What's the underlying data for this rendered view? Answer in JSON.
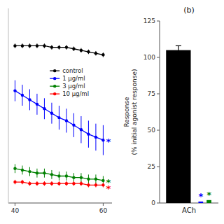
{
  "chart_data": [
    {
      "type": "line",
      "x": [
        40,
        41.666666666666664,
        43.333333333333336,
        45,
        46.666666666666664,
        48.333333333333336,
        50,
        51.66666666666667,
        53.333333333333336,
        55,
        56.66666666666667,
        58.333333333333336,
        60
      ],
      "xlim": [
        38.5,
        62
      ],
      "xticks": [
        40,
        60
      ],
      "ylim": [
        -5,
        125
      ],
      "yticks": [],
      "tick_labels": "x",
      "legend": "center",
      "marker": "circle",
      "series": [
        {
          "name": "control",
          "color": "black",
          "values": [
            100,
            100,
            100,
            100,
            100,
            99,
            99,
            99,
            98,
            97,
            96,
            95,
            94
          ],
          "errors": [
            1.5,
            1.5,
            1.5,
            1.5,
            1.5,
            1.5,
            1.5,
            1.5,
            1.5,
            1.5,
            1.5,
            1.5,
            1.5
          ]
        },
        {
          "name": "1 μg/ml",
          "color": "blue",
          "values": [
            70,
            67,
            64,
            61,
            58,
            55,
            52,
            50,
            47,
            44,
            41,
            39,
            37
          ],
          "errors": [
            7,
            7,
            7,
            7,
            7,
            7,
            8,
            8,
            8,
            9,
            9,
            9,
            10
          ]
        },
        {
          "name": "3 μg/ml",
          "color": "green",
          "values": [
            18,
            17,
            16,
            15,
            15,
            14,
            13,
            13,
            12,
            12,
            11,
            11,
            10
          ],
          "errors": [
            3,
            3,
            3,
            3,
            3,
            3,
            3,
            3,
            3,
            3,
            3,
            3,
            3
          ]
        },
        {
          "name": "10 μg/ml",
          "color": "red",
          "values": [
            9,
            9,
            8,
            8,
            8,
            8,
            8,
            8,
            8,
            8,
            7,
            7,
            7
          ],
          "errors": [
            1.5,
            1.5,
            1.5,
            1.5,
            1.5,
            1.5,
            1.5,
            1.5,
            1.5,
            1.5,
            1.5,
            1.5,
            1.5
          ]
        }
      ],
      "annotations": [
        {
          "text": "*",
          "color": "blue",
          "x": 60,
          "y": 37
        },
        {
          "text": "*",
          "color": "green",
          "x": 60,
          "y": 10
        },
        {
          "text": "*",
          "color": "red",
          "x": 60,
          "y": 7
        }
      ]
    },
    {
      "type": "bar",
      "title": "(b)",
      "ylabel": "Response\n(% initial agonist response)",
      "categories": [
        "ACh"
      ],
      "series": [
        {
          "color": "black",
          "values": [
            105
          ],
          "errors": [
            3
          ]
        },
        {
          "color": "blue",
          "values": [
            1.0
          ]
        },
        {
          "color": "green",
          "values": [
            2.0
          ]
        }
      ],
      "ylim": [
        0,
        125
      ],
      "yticks": [
        0,
        25,
        50,
        75,
        100,
        125
      ],
      "annotations": [
        {
          "text": "*",
          "color": "blue",
          "category": "ACh",
          "y": 1.0
        },
        {
          "text": "*",
          "color": "green",
          "category": "ACh",
          "y": 2.0
        }
      ]
    }
  ]
}
